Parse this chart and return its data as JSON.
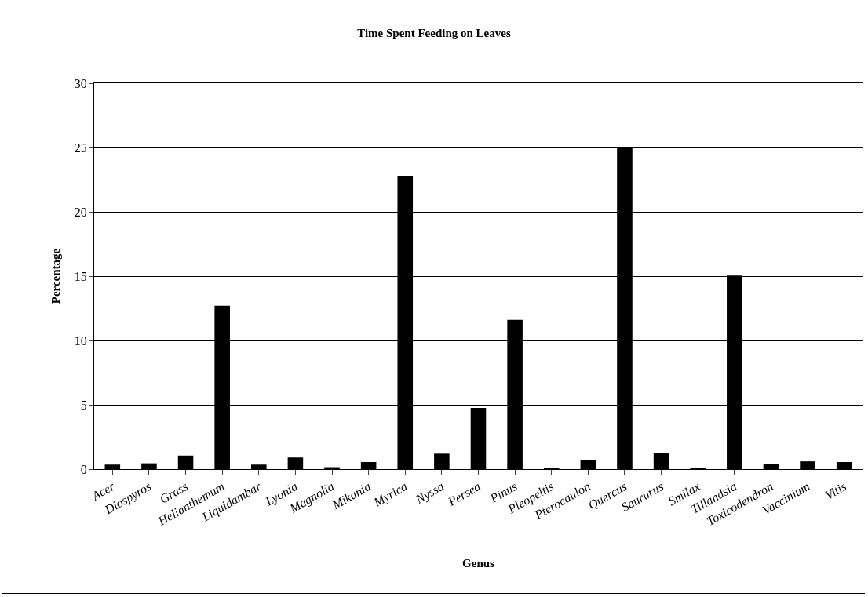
{
  "chart_data": {
    "type": "bar",
    "title": "Time Spent Feeding on Leaves",
    "xlabel": "Genus",
    "ylabel": "Percentage",
    "categories": [
      "Acer",
      "Diospyros",
      "Grass",
      "Helianthemum",
      "Liquidambar",
      "Lyonia",
      "Magnolia",
      "Mikania",
      "Myrica",
      "Nyssa",
      "Persea",
      "Pinus",
      "Pleopeltis",
      "Pterocaulon",
      "Quercus",
      "Saururus",
      "Smilax",
      "Tillandsia",
      "Toxicodendron",
      "Vaccinium",
      "Vitis"
    ],
    "values": [
      0.35,
      0.45,
      1.05,
      12.7,
      0.35,
      0.9,
      0.15,
      0.55,
      22.8,
      1.2,
      4.75,
      11.6,
      0.08,
      0.7,
      25,
      1.25,
      0.12,
      15.05,
      0.4,
      0.6,
      0.55
    ],
    "color": "#000000",
    "ylim": [
      0,
      30
    ],
    "yticks": [
      0,
      5,
      10,
      15,
      20,
      25,
      30
    ],
    "grid": "y"
  }
}
